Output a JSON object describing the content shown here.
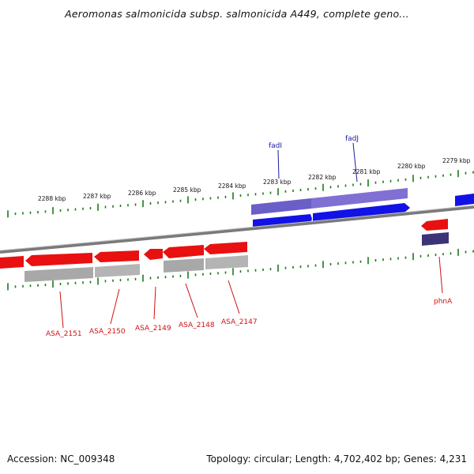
{
  "title": "Aeromonas salmonicida subsp. salmonicida A449, complete geno...",
  "footer": {
    "accession": "Accession: NC_009348",
    "stats": "Topology: circular; Length: 4,702,402 bp; Genes: 4,231"
  },
  "colors": {
    "forward_cds": "#1010e0",
    "forward_cds_light": "#7a6fd0",
    "reverse_cds": "#e81010",
    "reverse_cds_light": "#b0b0b0",
    "tick": "#1a7a1a",
    "backbone": "#808080",
    "forward_label": "#1a1aa0",
    "reverse_label": "#d01010"
  },
  "kbp_labels": [
    "2288 kbp",
    "2287 kbp",
    "2286 kbp",
    "2285 kbp",
    "2284 kbp",
    "2283 kbp",
    "2282 kbp",
    "2281 kbp",
    "2280 kbp",
    "2279 kbp"
  ],
  "forward_gene_labels": [
    "fadI",
    "fadJ"
  ],
  "reverse_gene_labels": [
    "ASA_2151",
    "ASA_2150",
    "ASA_2149",
    "ASA_2148",
    "ASA_2147",
    "phnA"
  ]
}
